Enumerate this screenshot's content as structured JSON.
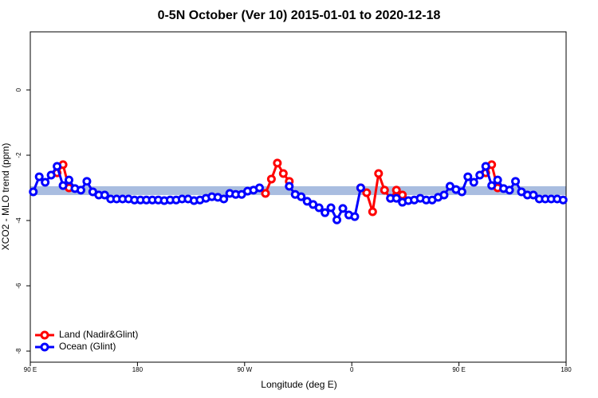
{
  "chart_data": {
    "type": "line",
    "title": "0-5N October (Ver 10)   2015-01-01 to 2020-12-18",
    "x_label": "Longitude (deg E)",
    "y_label": "XCO2 - MLO trend (ppm)",
    "xlim": [
      90,
      540
    ],
    "xticks": [
      {
        "value": 90,
        "label": "90 E"
      },
      180,
      {
        "value": 270,
        "label": "90 W"
      },
      {
        "value": 360,
        "label": "0"
      },
      {
        "value": 450,
        "label": "90 E"
      },
      {
        "value": 540,
        "label": "180"
      }
    ],
    "ylim": [
      -8.34,
      1.78
    ],
    "yticks": [
      -8,
      -6,
      -4,
      -2,
      0
    ],
    "band": [
      -3.22,
      -2.95
    ],
    "band_color": "#a9bde0",
    "legend": "bottom-left",
    "x": [
      92.5,
      97.5,
      102.5,
      107.5,
      112.5,
      117.5,
      122.5,
      127.5,
      132.5,
      137.5,
      142.5,
      147.5,
      152.5,
      157.5,
      162.5,
      167.5,
      172.5,
      177.5,
      182.5,
      187.5,
      192.5,
      197.5,
      202.5,
      207.5,
      212.5,
      217.5,
      222.5,
      227.5,
      232.5,
      237.5,
      242.5,
      247.5,
      252.5,
      257.5,
      262.5,
      267.5,
      272.5,
      277.5,
      282.5,
      287.5,
      292.5,
      297.5,
      302.5,
      307.5,
      312.5,
      317.5,
      322.5,
      327.5,
      332.5,
      337.5,
      342.5,
      347.5,
      352.5,
      357.5,
      362.5,
      367.5,
      372.5,
      377.5,
      382.5,
      387.5,
      392.5,
      397.5,
      402.5,
      407.5,
      412.5,
      417.5,
      422.5,
      427.5,
      432.5,
      437.5,
      442.5,
      447.5,
      452.5,
      457.5,
      462.5,
      467.5,
      472.5,
      477.5,
      482.5,
      487.5,
      492.5,
      497.5,
      502.5,
      507.5,
      512.5,
      517.5,
      522.5,
      527.5,
      532.5,
      537.5
    ],
    "series": [
      {
        "name": "Land (Nadir&Glint)",
        "color": "#ff0000",
        "values": [
          null,
          null,
          null,
          null,
          -2.54,
          -2.29,
          -3.0,
          null,
          null,
          null,
          null,
          null,
          null,
          null,
          null,
          null,
          null,
          null,
          null,
          null,
          null,
          null,
          null,
          null,
          null,
          null,
          null,
          null,
          null,
          null,
          null,
          null,
          null,
          null,
          null,
          null,
          null,
          null,
          null,
          -3.17,
          -2.73,
          -2.24,
          -2.56,
          -2.8,
          null,
          null,
          null,
          null,
          null,
          null,
          null,
          null,
          null,
          null,
          null,
          -3.0,
          -3.15,
          -3.73,
          -2.56,
          -3.07,
          -3.32,
          -3.07,
          -3.22,
          null,
          null,
          null,
          null,
          null,
          null,
          null,
          null,
          null,
          null,
          null,
          null,
          null,
          -2.54,
          -2.29,
          -3.0,
          null,
          null,
          null,
          null,
          null,
          null,
          null,
          null,
          null,
          null,
          null
        ]
      },
      {
        "name": "Ocean (Glint)",
        "color": "#0000ff",
        "values": [
          -3.12,
          -2.66,
          -2.83,
          -2.61,
          -2.34,
          -2.93,
          -2.76,
          -3.02,
          -3.07,
          -2.8,
          -3.12,
          -3.22,
          -3.22,
          -3.34,
          -3.34,
          -3.34,
          -3.34,
          -3.37,
          -3.37,
          -3.37,
          -3.37,
          -3.37,
          -3.39,
          -3.37,
          -3.37,
          -3.34,
          -3.34,
          -3.39,
          -3.37,
          -3.32,
          -3.27,
          -3.29,
          -3.34,
          -3.17,
          -3.2,
          -3.2,
          -3.1,
          -3.07,
          -3.0,
          null,
          null,
          null,
          null,
          -2.95,
          -3.2,
          -3.27,
          -3.41,
          -3.51,
          -3.61,
          -3.76,
          -3.61,
          -3.98,
          -3.63,
          -3.83,
          -3.88,
          -3.0,
          null,
          null,
          null,
          null,
          -3.32,
          -3.32,
          -3.44,
          -3.39,
          -3.37,
          -3.32,
          -3.37,
          -3.37,
          -3.29,
          -3.22,
          -2.95,
          -3.05,
          -3.12,
          -2.66,
          -2.83,
          -2.61,
          -2.34,
          -2.93,
          -2.76,
          -3.02,
          -3.07,
          -2.8,
          -3.12,
          -3.22,
          -3.22,
          -3.34,
          -3.34,
          -3.34,
          -3.34,
          -3.37
        ]
      }
    ]
  }
}
